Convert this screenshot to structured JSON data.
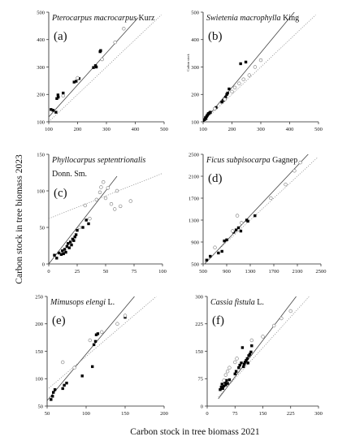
{
  "figure": {
    "ylabel": "Carbon stock in tree biomass 2023",
    "xlabel": "Carbon stock in tree biomass 2021",
    "stray_label": "Carbon stock"
  },
  "chart_data": [
    {
      "type": "scatter",
      "letter": "(a)",
      "title_italic": "Pterocarpus macrocarpus",
      "title_plain": " Kurz",
      "xlim": [
        100,
        500
      ],
      "ylim": [
        100,
        500
      ],
      "xticks": [
        100,
        200,
        300,
        400,
        500
      ],
      "yticks": [
        100,
        200,
        300,
        400,
        500
      ],
      "series": [
        {
          "marker": "filled",
          "points": [
            [
              108,
              145
            ],
            [
              115,
              142
            ],
            [
              125,
              135
            ],
            [
              128,
              185
            ],
            [
              132,
              198
            ],
            [
              133,
              190
            ],
            [
              150,
              205
            ],
            [
              188,
              245
            ],
            [
              195,
              248
            ],
            [
              205,
              258
            ],
            [
              255,
              298
            ],
            [
              262,
              305
            ],
            [
              265,
              300
            ],
            [
              278,
              356
            ],
            [
              280,
              360
            ]
          ]
        },
        {
          "marker": "open",
          "points": [
            [
              150,
              195
            ],
            [
              200,
              260
            ],
            [
              285,
              328
            ],
            [
              330,
              390
            ],
            [
              360,
              440
            ]
          ]
        }
      ],
      "lines": [
        {
          "style": "solid",
          "from": [
            100,
            118
          ],
          "to": [
            410,
            480
          ]
        },
        {
          "style": "dotted",
          "from": [
            100,
            100
          ],
          "to": [
            490,
            490
          ]
        }
      ]
    },
    {
      "type": "scatter",
      "letter": "(b)",
      "title_italic": "Swietenia macrophylla",
      "title_plain": " King",
      "xlim": [
        100,
        500
      ],
      "ylim": [
        100,
        500
      ],
      "xticks": [
        100,
        200,
        300,
        400,
        500
      ],
      "yticks": [
        100,
        200,
        300,
        400,
        500
      ],
      "series": [
        {
          "marker": "filled",
          "points": [
            [
              100,
              102
            ],
            [
              105,
              108
            ],
            [
              108,
              115
            ],
            [
              110,
              112
            ],
            [
              112,
              120
            ],
            [
              115,
              125
            ],
            [
              118,
              130
            ],
            [
              122,
              132
            ],
            [
              125,
              135
            ],
            [
              145,
              152
            ],
            [
              165,
              172
            ],
            [
              170,
              178
            ],
            [
              178,
              190
            ],
            [
              182,
              200
            ],
            [
              185,
              205
            ],
            [
              190,
              220
            ],
            [
              230,
              312
            ],
            [
              248,
              318
            ]
          ]
        },
        {
          "marker": "open",
          "points": [
            [
              140,
              148
            ],
            [
              175,
              182
            ],
            [
              200,
              210
            ],
            [
              210,
              225
            ],
            [
              225,
              240
            ],
            [
              240,
              255
            ],
            [
              260,
              270
            ],
            [
              280,
              300
            ],
            [
              300,
              325
            ]
          ]
        }
      ],
      "lines": [
        {
          "style": "solid",
          "from": [
            95,
            92
          ],
          "to": [
            420,
            505
          ]
        },
        {
          "style": "dotted",
          "from": [
            100,
            100
          ],
          "to": [
            490,
            490
          ]
        }
      ]
    },
    {
      "type": "scatter",
      "letter": "(c)",
      "title_italic": "Phyllocarpus septentrionalis",
      "title_plain": "",
      "subtitle": "Donn. Sm.",
      "xlim": [
        0,
        100
      ],
      "ylim": [
        0,
        150
      ],
      "xticks": [
        0,
        25,
        50,
        75,
        100
      ],
      "yticks": [
        0,
        50,
        100,
        150
      ],
      "series": [
        {
          "marker": "filled",
          "points": [
            [
              5,
              12
            ],
            [
              7,
              8
            ],
            [
              9,
              15
            ],
            [
              11,
              13
            ],
            [
              12,
              18
            ],
            [
              13,
              14
            ],
            [
              14,
              20
            ],
            [
              15,
              16
            ],
            [
              16,
              24
            ],
            [
              17,
              28
            ],
            [
              18,
              22
            ],
            [
              19,
              30
            ],
            [
              20,
              26
            ],
            [
              21,
              34
            ],
            [
              22,
              32
            ],
            [
              23,
              37
            ],
            [
              24,
              40
            ],
            [
              25,
              46
            ],
            [
              30,
              50
            ],
            [
              33,
              60
            ],
            [
              35,
              55
            ]
          ]
        },
        {
          "marker": "open",
          "points": [
            [
              27,
              50
            ],
            [
              32,
              80
            ],
            [
              36,
              62
            ],
            [
              42,
              88
            ],
            [
              45,
              98
            ],
            [
              46,
              105
            ],
            [
              48,
              112
            ],
            [
              50,
              90
            ],
            [
              52,
              104
            ],
            [
              55,
              82
            ],
            [
              58,
              75
            ],
            [
              60,
              100
            ],
            [
              63,
              79
            ],
            [
              72,
              86
            ]
          ]
        }
      ],
      "lines": [
        {
          "style": "solid",
          "from": [
            0,
            0
          ],
          "to": [
            60,
            120
          ]
        },
        {
          "style": "dotted",
          "from": [
            0,
            62
          ],
          "to": [
            100,
            124
          ]
        }
      ]
    },
    {
      "type": "scatter",
      "letter": "(d)",
      "title_italic": "Ficus subpisocarpa",
      "title_plain": " Gagnep",
      "xlim": [
        500,
        2500
      ],
      "ylim": [
        500,
        2500
      ],
      "xticks": [
        500,
        900,
        1300,
        1700,
        2100,
        2500
      ],
      "xtick_labels": [
        "500",
        "900",
        "1300",
        "1700",
        "2100",
        "2500"
      ],
      "yticks": [
        500,
        900,
        1300,
        1700,
        2100,
        2500
      ],
      "series": [
        {
          "marker": "filled",
          "points": [
            [
              560,
              570
            ],
            [
              620,
              640
            ],
            [
              760,
              700
            ],
            [
              820,
              730
            ],
            [
              860,
              920
            ],
            [
              900,
              940
            ],
            [
              1020,
              1080
            ],
            [
              1060,
              1120
            ],
            [
              1100,
              1160
            ],
            [
              1140,
              1100
            ],
            [
              1240,
              1300
            ],
            [
              1260,
              1280
            ],
            [
              1380,
              1380
            ]
          ]
        },
        {
          "marker": "open",
          "points": [
            [
              700,
              800
            ],
            [
              1000,
              1100
            ],
            [
              1080,
              1380
            ],
            [
              1150,
              1250
            ],
            [
              1650,
              1700
            ],
            [
              1900,
              1950
            ],
            [
              2050,
              2200
            ],
            [
              2150,
              2350
            ]
          ]
        }
      ],
      "lines": [
        {
          "style": "solid",
          "from": [
            500,
            470
          ],
          "to": [
            2300,
            2520
          ]
        },
        {
          "style": "dotted",
          "from": [
            500,
            500
          ],
          "to": [
            2450,
            2450
          ]
        }
      ]
    },
    {
      "type": "scatter",
      "letter": "(e)",
      "title_italic": "Mimusops elengi",
      "title_plain": " L.",
      "xlim": [
        50,
        200
      ],
      "ylim": [
        50,
        250
      ],
      "xticks": [
        50,
        100,
        150,
        200
      ],
      "yticks": [
        50,
        100,
        150,
        200,
        250
      ],
      "series": [
        {
          "marker": "filled",
          "points": [
            [
              55,
              62
            ],
            [
              57,
              68
            ],
            [
              58,
              75
            ],
            [
              60,
              80
            ],
            [
              70,
              82
            ],
            [
              72,
              88
            ],
            [
              75,
              92
            ],
            [
              95,
              105
            ],
            [
              108,
              122
            ],
            [
              110,
              162
            ],
            [
              112,
              168
            ],
            [
              113,
              180
            ],
            [
              115,
              182
            ],
            [
              150,
              212
            ]
          ]
        },
        {
          "marker": "open",
          "points": [
            [
              70,
              130
            ],
            [
              85,
              120
            ],
            [
              105,
              170
            ],
            [
              120,
              185
            ],
            [
              140,
              200
            ],
            [
              150,
              215
            ]
          ]
        }
      ],
      "lines": [
        {
          "style": "solid",
          "from": [
            50,
            60
          ],
          "to": [
            162,
            250
          ]
        },
        {
          "style": "dotted",
          "from": [
            50,
            80
          ],
          "to": [
            190,
            250
          ]
        }
      ]
    },
    {
      "type": "scatter",
      "letter": "(f)",
      "title_italic": "Cassia fistula",
      "title_plain": " L.",
      "xlim": [
        0,
        300
      ],
      "ylim": [
        0,
        300
      ],
      "xticks": [
        0,
        75,
        150,
        225,
        300
      ],
      "yticks": [
        0,
        75,
        150,
        225,
        300
      ],
      "series": [
        {
          "marker": "filled",
          "points": [
            [
              35,
              45
            ],
            [
              38,
              52
            ],
            [
              40,
              60
            ],
            [
              42,
              48
            ],
            [
              45,
              55
            ],
            [
              48,
              65
            ],
            [
              50,
              58
            ],
            [
              52,
              70
            ],
            [
              55,
              62
            ],
            [
              60,
              72
            ],
            [
              75,
              88
            ],
            [
              78,
              95
            ],
            [
              85,
              105
            ],
            [
              88,
              112
            ],
            [
              92,
              118
            ],
            [
              95,
              160
            ],
            [
              98,
              108
            ],
            [
              100,
              115
            ],
            [
              102,
              120
            ],
            [
              105,
              125
            ],
            [
              108,
              130
            ],
            [
              110,
              118
            ],
            [
              112,
              138
            ],
            [
              115,
              142
            ],
            [
              118,
              148
            ],
            [
              120,
              165
            ]
          ]
        },
        {
          "marker": "open",
          "points": [
            [
              45,
              70
            ],
            [
              50,
              85
            ],
            [
              55,
              95
            ],
            [
              60,
              105
            ],
            [
              75,
              120
            ],
            [
              80,
              130
            ],
            [
              120,
              180
            ],
            [
              150,
              190
            ],
            [
              180,
              220
            ],
            [
              200,
              240
            ],
            [
              225,
              260
            ]
          ]
        }
      ],
      "lines": [
        {
          "style": "solid",
          "from": [
            30,
            20
          ],
          "to": [
            240,
            300
          ]
        },
        {
          "style": "dotted",
          "from": [
            30,
            25
          ],
          "to": [
            275,
            300
          ]
        }
      ]
    }
  ]
}
